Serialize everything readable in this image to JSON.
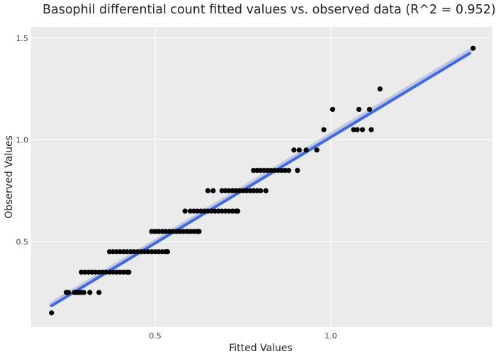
{
  "chart_data": {
    "type": "scatter",
    "title": "Basophil differential count  fitted values vs. observed data (R^2 = 0.952)",
    "xlabel": "Fitted Values",
    "ylabel": "Observed Values",
    "xlim": [
      0.147,
      1.46
    ],
    "ylim": [
      0.08,
      1.555
    ],
    "x_ticks": [
      0.5,
      1.0
    ],
    "x_tick_labels": [
      "0.5",
      "1.0"
    ],
    "y_ticks": [
      0.5,
      1.0,
      1.5
    ],
    "y_tick_labels": [
      "0.5",
      "1.0",
      "1.5"
    ],
    "grid": true,
    "background": "#ebebeb",
    "point_color": "#000000",
    "fit_line_color": "#4169e1",
    "fit_line": {
      "x": [
        0.205,
        1.395
      ],
      "y": [
        0.185,
        1.425
      ]
    },
    "points": [
      {
        "x": 0.205,
        "y": 0.15
      },
      {
        "x": 0.247,
        "y": 0.25
      },
      {
        "x": 0.253,
        "y": 0.25
      },
      {
        "x": 0.27,
        "y": 0.25
      },
      {
        "x": 0.275,
        "y": 0.25
      },
      {
        "x": 0.28,
        "y": 0.25
      },
      {
        "x": 0.285,
        "y": 0.25
      },
      {
        "x": 0.29,
        "y": 0.25
      },
      {
        "x": 0.297,
        "y": 0.25
      },
      {
        "x": 0.314,
        "y": 0.25
      },
      {
        "x": 0.34,
        "y": 0.25
      },
      {
        "x": 0.29,
        "y": 0.35
      },
      {
        "x": 0.3,
        "y": 0.35
      },
      {
        "x": 0.31,
        "y": 0.35
      },
      {
        "x": 0.32,
        "y": 0.35
      },
      {
        "x": 0.33,
        "y": 0.35
      },
      {
        "x": 0.34,
        "y": 0.35
      },
      {
        "x": 0.35,
        "y": 0.35
      },
      {
        "x": 0.36,
        "y": 0.35
      },
      {
        "x": 0.37,
        "y": 0.35
      },
      {
        "x": 0.38,
        "y": 0.35
      },
      {
        "x": 0.39,
        "y": 0.35
      },
      {
        "x": 0.4,
        "y": 0.35
      },
      {
        "x": 0.41,
        "y": 0.35
      },
      {
        "x": 0.42,
        "y": 0.35
      },
      {
        "x": 0.425,
        "y": 0.35
      },
      {
        "x": 0.37,
        "y": 0.45
      },
      {
        "x": 0.38,
        "y": 0.45
      },
      {
        "x": 0.39,
        "y": 0.45
      },
      {
        "x": 0.4,
        "y": 0.45
      },
      {
        "x": 0.41,
        "y": 0.45
      },
      {
        "x": 0.42,
        "y": 0.45
      },
      {
        "x": 0.43,
        "y": 0.45
      },
      {
        "x": 0.44,
        "y": 0.45
      },
      {
        "x": 0.45,
        "y": 0.45
      },
      {
        "x": 0.46,
        "y": 0.45
      },
      {
        "x": 0.47,
        "y": 0.45
      },
      {
        "x": 0.48,
        "y": 0.45
      },
      {
        "x": 0.49,
        "y": 0.45
      },
      {
        "x": 0.5,
        "y": 0.45
      },
      {
        "x": 0.51,
        "y": 0.45
      },
      {
        "x": 0.52,
        "y": 0.45
      },
      {
        "x": 0.53,
        "y": 0.45
      },
      {
        "x": 0.535,
        "y": 0.45
      },
      {
        "x": 0.49,
        "y": 0.55
      },
      {
        "x": 0.5,
        "y": 0.55
      },
      {
        "x": 0.51,
        "y": 0.55
      },
      {
        "x": 0.52,
        "y": 0.55
      },
      {
        "x": 0.53,
        "y": 0.55
      },
      {
        "x": 0.54,
        "y": 0.55
      },
      {
        "x": 0.55,
        "y": 0.55
      },
      {
        "x": 0.56,
        "y": 0.55
      },
      {
        "x": 0.57,
        "y": 0.55
      },
      {
        "x": 0.58,
        "y": 0.55
      },
      {
        "x": 0.59,
        "y": 0.55
      },
      {
        "x": 0.6,
        "y": 0.55
      },
      {
        "x": 0.61,
        "y": 0.55
      },
      {
        "x": 0.62,
        "y": 0.55
      },
      {
        "x": 0.625,
        "y": 0.55
      },
      {
        "x": 0.585,
        "y": 0.65
      },
      {
        "x": 0.6,
        "y": 0.65
      },
      {
        "x": 0.61,
        "y": 0.65
      },
      {
        "x": 0.62,
        "y": 0.65
      },
      {
        "x": 0.63,
        "y": 0.65
      },
      {
        "x": 0.64,
        "y": 0.65
      },
      {
        "x": 0.65,
        "y": 0.65
      },
      {
        "x": 0.66,
        "y": 0.65
      },
      {
        "x": 0.67,
        "y": 0.65
      },
      {
        "x": 0.68,
        "y": 0.65
      },
      {
        "x": 0.69,
        "y": 0.65
      },
      {
        "x": 0.7,
        "y": 0.65
      },
      {
        "x": 0.71,
        "y": 0.65
      },
      {
        "x": 0.72,
        "y": 0.65
      },
      {
        "x": 0.73,
        "y": 0.65
      },
      {
        "x": 0.735,
        "y": 0.65
      },
      {
        "x": 0.65,
        "y": 0.75
      },
      {
        "x": 0.665,
        "y": 0.75
      },
      {
        "x": 0.69,
        "y": 0.75
      },
      {
        "x": 0.7,
        "y": 0.75
      },
      {
        "x": 0.71,
        "y": 0.75
      },
      {
        "x": 0.72,
        "y": 0.75
      },
      {
        "x": 0.73,
        "y": 0.75
      },
      {
        "x": 0.74,
        "y": 0.75
      },
      {
        "x": 0.75,
        "y": 0.75
      },
      {
        "x": 0.76,
        "y": 0.75
      },
      {
        "x": 0.77,
        "y": 0.75
      },
      {
        "x": 0.78,
        "y": 0.75
      },
      {
        "x": 0.79,
        "y": 0.75
      },
      {
        "x": 0.8,
        "y": 0.75
      },
      {
        "x": 0.815,
        "y": 0.75
      },
      {
        "x": 0.78,
        "y": 0.85
      },
      {
        "x": 0.79,
        "y": 0.85
      },
      {
        "x": 0.8,
        "y": 0.85
      },
      {
        "x": 0.81,
        "y": 0.85
      },
      {
        "x": 0.82,
        "y": 0.85
      },
      {
        "x": 0.83,
        "y": 0.85
      },
      {
        "x": 0.84,
        "y": 0.85
      },
      {
        "x": 0.85,
        "y": 0.85
      },
      {
        "x": 0.86,
        "y": 0.85
      },
      {
        "x": 0.87,
        "y": 0.85
      },
      {
        "x": 0.88,
        "y": 0.85
      },
      {
        "x": 0.905,
        "y": 0.85
      },
      {
        "x": 0.895,
        "y": 0.95
      },
      {
        "x": 0.91,
        "y": 0.95
      },
      {
        "x": 0.93,
        "y": 0.95
      },
      {
        "x": 0.96,
        "y": 0.95
      },
      {
        "x": 0.98,
        "y": 1.05
      },
      {
        "x": 1.065,
        "y": 1.05
      },
      {
        "x": 1.075,
        "y": 1.05
      },
      {
        "x": 1.09,
        "y": 1.05
      },
      {
        "x": 1.115,
        "y": 1.05
      },
      {
        "x": 1.005,
        "y": 1.15
      },
      {
        "x": 1.08,
        "y": 1.15
      },
      {
        "x": 1.11,
        "y": 1.15
      },
      {
        "x": 1.14,
        "y": 1.25
      },
      {
        "x": 1.405,
        "y": 1.45
      }
    ]
  }
}
